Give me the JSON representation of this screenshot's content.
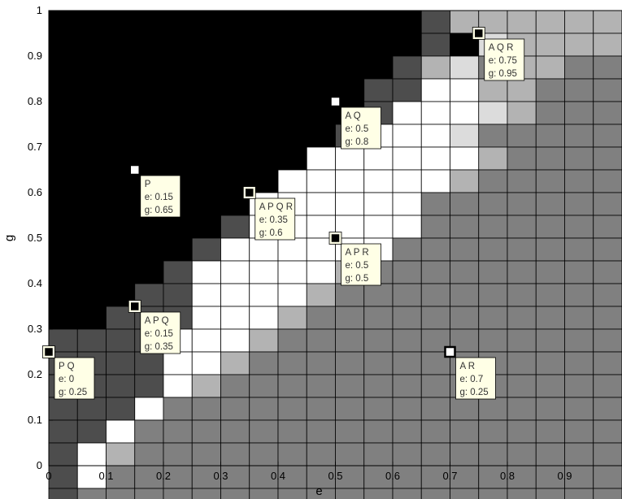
{
  "chart_data": {
    "type": "heatmap",
    "xlabel": "e",
    "ylabel": "g",
    "xlim": [
      0,
      1
    ],
    "ylim": [
      0,
      1
    ],
    "cell_size": 0.05,
    "x_ticks": [
      "0",
      "0.1",
      "0.2",
      "0.3",
      "0.4",
      "0.5",
      "0.6",
      "0.7",
      "0.8",
      "0.9"
    ],
    "y_ticks": [
      "0",
      "0.1",
      "0.2",
      "0.3",
      "0.4",
      "0.5",
      "0.6",
      "0.7",
      "0.8",
      "0.9",
      "1"
    ],
    "grid": true,
    "palette": {
      "0": "#000000",
      "1": "#4d4d4d",
      "2": "#808080",
      "3": "#b3b3b3",
      "4": "#dcdcdc",
      "5": "#ffffff"
    },
    "grid_rows_top_to_bottom": [
      "0000000000000133333333",
      "0000000000000104333333",
      "0000000000001342332222",
      "0000000000011553322222",
      "0000000000015554322222",
      "0000000000155542222222",
      "0000000005555553222222",
      "0000000055555532222222",
      "0000000555555222222222",
      "0000001555555222222222",
      "0000015555552222222222",
      "0000155555322222222222",
      "0001155553222222222222",
      "0011155532222222222222",
      "1111555322222222222222",
      "1111553222222222222222",
      "1111532222222222222222",
      "1115222222222222222222",
      "1152222222222222222222",
      "1532222222222222222222",
      "1522222222222222222222",
      "1222222222222222222222"
    ],
    "annotations": [
      {
        "label": "A Q R",
        "e_text": "e: 0.75",
        "g_text": "g: 0.95",
        "x": 0.75,
        "y": 0.95,
        "marker": "black"
      },
      {
        "label": "A Q",
        "e_text": "e: 0.5",
        "g_text": "g: 0.8",
        "x": 0.5,
        "y": 0.8,
        "marker": "white"
      },
      {
        "label": "P",
        "e_text": "e: 0.15",
        "g_text": "g: 0.65",
        "x": 0.15,
        "y": 0.65,
        "marker": "white"
      },
      {
        "label": "A P Q R",
        "e_text": "e: 0.35",
        "g_text": "g: 0.6",
        "x": 0.35,
        "y": 0.6,
        "marker": "black"
      },
      {
        "label": "A P R",
        "e_text": "e: 0.5",
        "g_text": "g: 0.5",
        "x": 0.5,
        "y": 0.5,
        "marker": "black"
      },
      {
        "label": "A P Q",
        "e_text": "e: 0.15",
        "g_text": "g: 0.35",
        "x": 0.15,
        "y": 0.35,
        "marker": "black"
      },
      {
        "label": "A R",
        "e_text": "e: 0.7",
        "g_text": "g: 0.25",
        "x": 0.7,
        "y": 0.25,
        "marker": "white"
      },
      {
        "label": "P Q",
        "e_text": "e: 0",
        "g_text": "g: 0.25",
        "x": 0,
        "y": 0.25,
        "marker": "black"
      }
    ]
  }
}
